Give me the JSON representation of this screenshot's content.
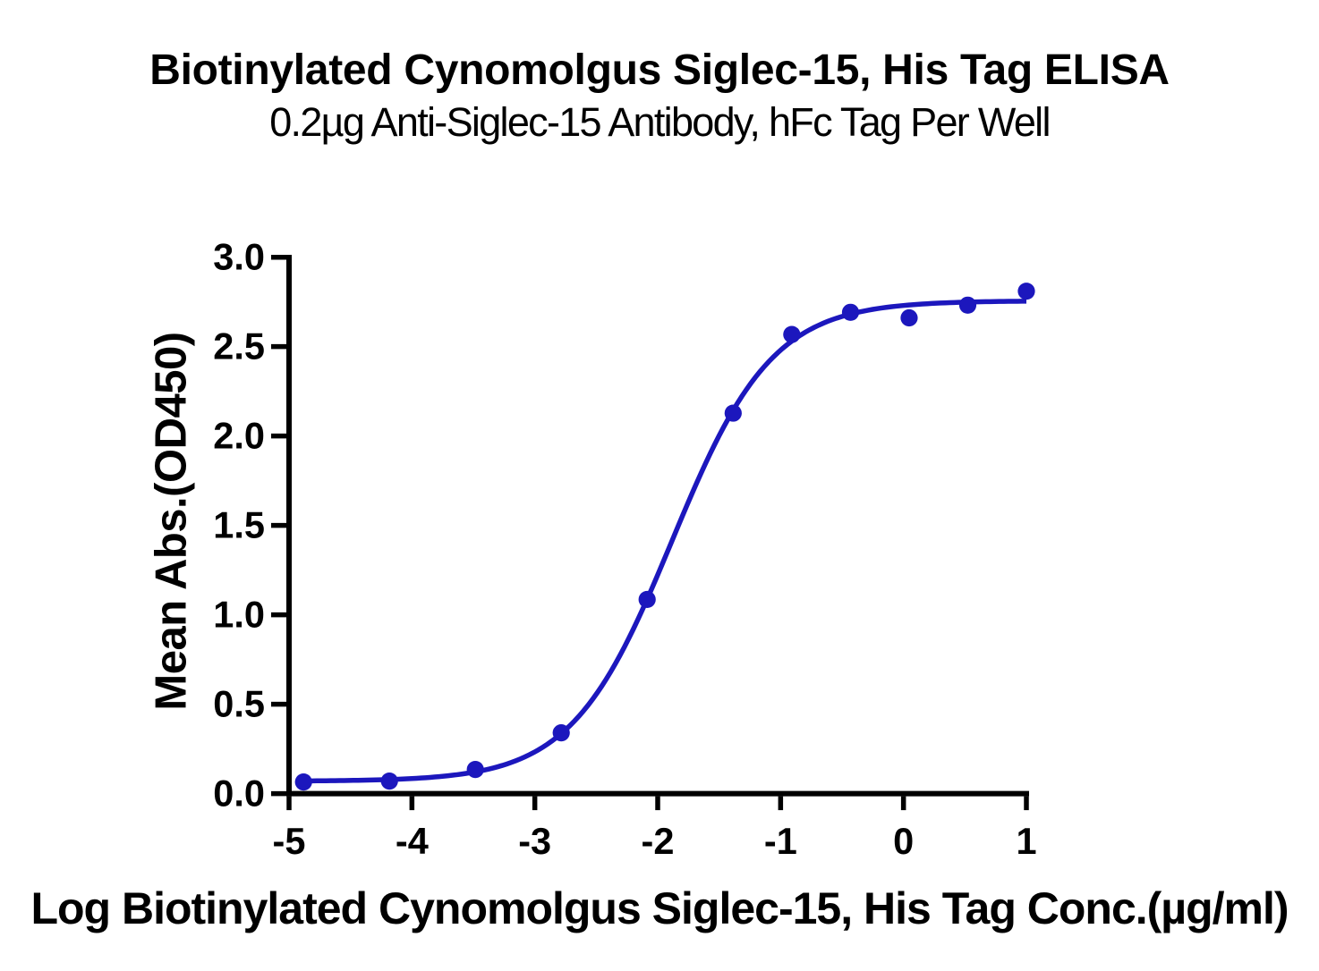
{
  "title": "Biotinylated Cynomolgus Siglec-15, His Tag ELISA",
  "subtitle": "0.2µg Anti-Siglec-15 Antibody, hFc Tag Per Well",
  "chart_data": {
    "type": "scatter",
    "title": "Biotinylated Cynomolgus Siglec-15, His Tag ELISA",
    "subtitle": "0.2µg Anti-Siglec-15 Antibody, hFc Tag Per Well",
    "xlabel": "Log Biotinylated Cynomolgus Siglec-15, His Tag Conc.(µg/ml)",
    "ylabel": "Mean Abs.(OD450)",
    "xlim": [
      -5,
      1
    ],
    "ylim": [
      0,
      3
    ],
    "x_ticks": [
      -5,
      -4,
      -3,
      -2,
      -1,
      0,
      1
    ],
    "x_tick_labels": [
      "-5",
      "-4",
      "-3",
      "-2",
      "-1",
      "0",
      "1"
    ],
    "y_ticks": [
      0,
      0.5,
      1,
      1.5,
      2,
      2.5,
      3
    ],
    "y_tick_labels": [
      "0.0",
      "0.5",
      "1.0",
      "1.5",
      "2.0",
      "2.5",
      "3.0"
    ],
    "grid": false,
    "legend": null,
    "series": [
      {
        "name": "Biotinylated Cynomolgus Siglec-15, His Tag",
        "x": [
          -4.882,
          -4.183,
          -3.484,
          -2.785,
          -2.086,
          -1.386,
          -0.909,
          -0.431,
          0.046,
          0.523,
          1.0
        ],
        "y": [
          0.065,
          0.07,
          0.135,
          0.34,
          1.086,
          2.128,
          2.568,
          2.692,
          2.661,
          2.732,
          2.81
        ]
      }
    ],
    "fit_curve": {
      "model": "4PL",
      "bottom": 0.0693,
      "top": 2.7565,
      "log_ec50": -1.8842,
      "hill_slope": 1.0639,
      "x_start": -4.882,
      "x_end": 1.0
    },
    "colors": {
      "series": "#1c17bd",
      "axis": "#000000",
      "text": "#000000",
      "background": "#ffffff"
    }
  }
}
